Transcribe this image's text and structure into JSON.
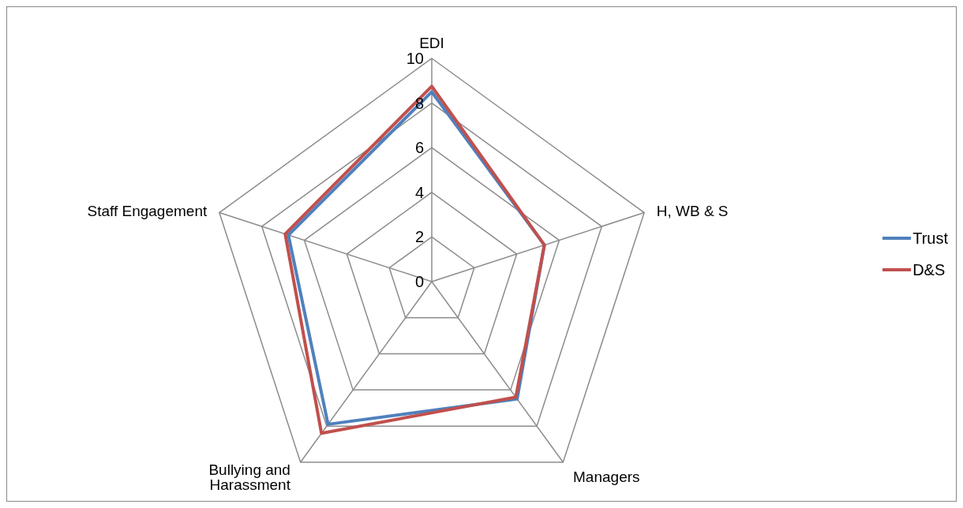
{
  "chart_data": {
    "type": "radar",
    "categories": [
      "EDI",
      "H, WB & S",
      "Managers",
      "Bullying and Harassment",
      "Staff Engagement"
    ],
    "series": [
      {
        "name": "Trust",
        "color": "#4f81bd",
        "values": [
          8.5,
          5.3,
          6.5,
          7.9,
          6.75
        ]
      },
      {
        "name": "D&S",
        "color": "#c0504d",
        "values": [
          8.75,
          5.3,
          6.4,
          8.4,
          6.9
        ]
      }
    ],
    "ylim": [
      0,
      10
    ],
    "yticks": [
      0,
      2,
      4,
      6,
      8,
      10
    ],
    "grid": true,
    "legend": "right",
    "marker": "none"
  }
}
